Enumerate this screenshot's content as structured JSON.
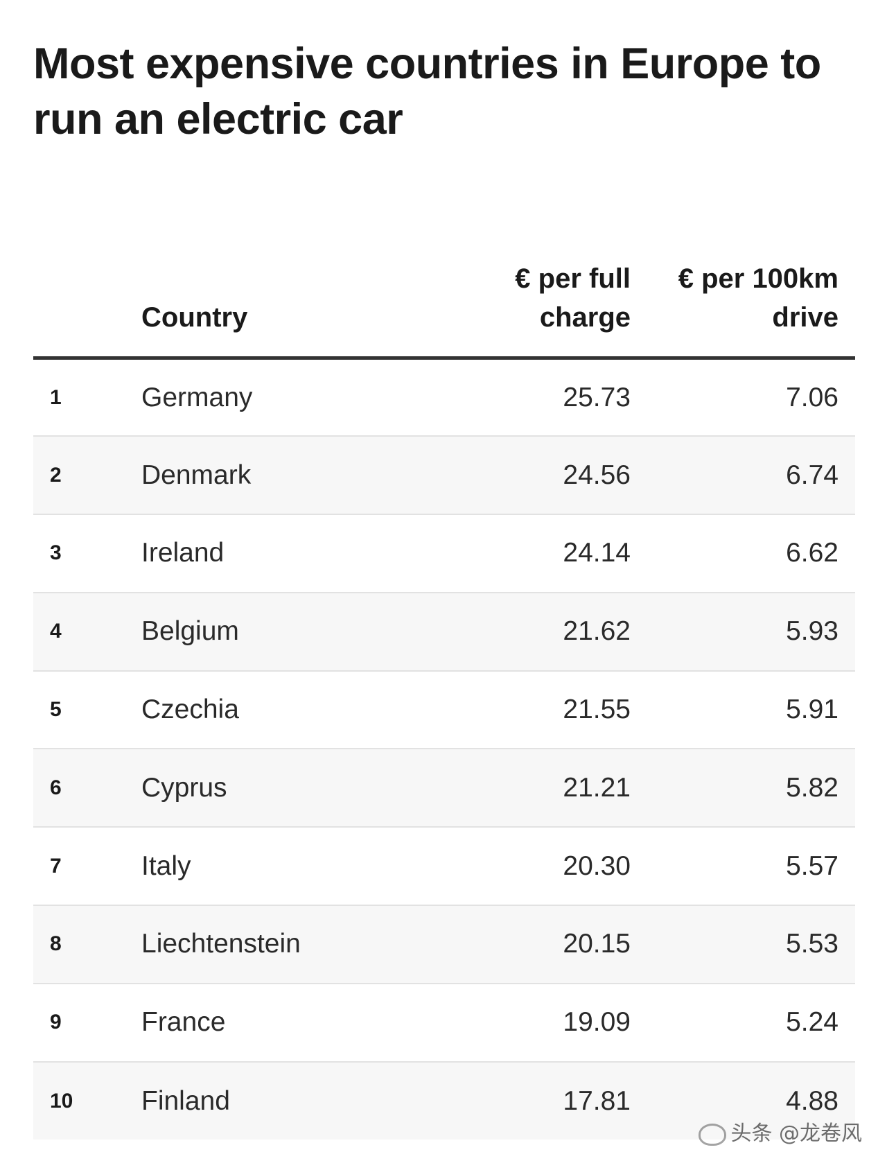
{
  "chart_data": {
    "type": "table",
    "title": "Most expensive countries in Europe to run an electric car",
    "columns": [
      "",
      "Country",
      "€ per full charge",
      "€ per 100km drive"
    ],
    "rows": [
      {
        "rank": "1",
        "country": "Germany",
        "per_full_charge": "25.73",
        "per_100km_drive": "7.06"
      },
      {
        "rank": "2",
        "country": "Denmark",
        "per_full_charge": "24.56",
        "per_100km_drive": "6.74"
      },
      {
        "rank": "3",
        "country": "Ireland",
        "per_full_charge": "24.14",
        "per_100km_drive": "6.62"
      },
      {
        "rank": "4",
        "country": "Belgium",
        "per_full_charge": "21.62",
        "per_100km_drive": "5.93"
      },
      {
        "rank": "5",
        "country": "Czechia",
        "per_full_charge": "21.55",
        "per_100km_drive": "5.91"
      },
      {
        "rank": "6",
        "country": "Cyprus",
        "per_full_charge": "21.21",
        "per_100km_drive": "5.82"
      },
      {
        "rank": "7",
        "country": "Italy",
        "per_full_charge": "20.30",
        "per_100km_drive": "5.57"
      },
      {
        "rank": "8",
        "country": "Liechtenstein",
        "per_full_charge": "20.15",
        "per_100km_drive": "5.53"
      },
      {
        "rank": "9",
        "country": "France",
        "per_full_charge": "19.09",
        "per_100km_drive": "5.24"
      },
      {
        "rank": "10",
        "country": "Finland",
        "per_full_charge": "17.81",
        "per_100km_drive": "4.88"
      }
    ],
    "colors": {
      "header_rule": "#333333",
      "row_alt": "#f7f7f7",
      "row_rule": "#e2e2e2",
      "text": "#1a1a1a"
    }
  },
  "watermark": {
    "text": "头条 @龙卷风",
    "icon": "weibo-icon"
  }
}
